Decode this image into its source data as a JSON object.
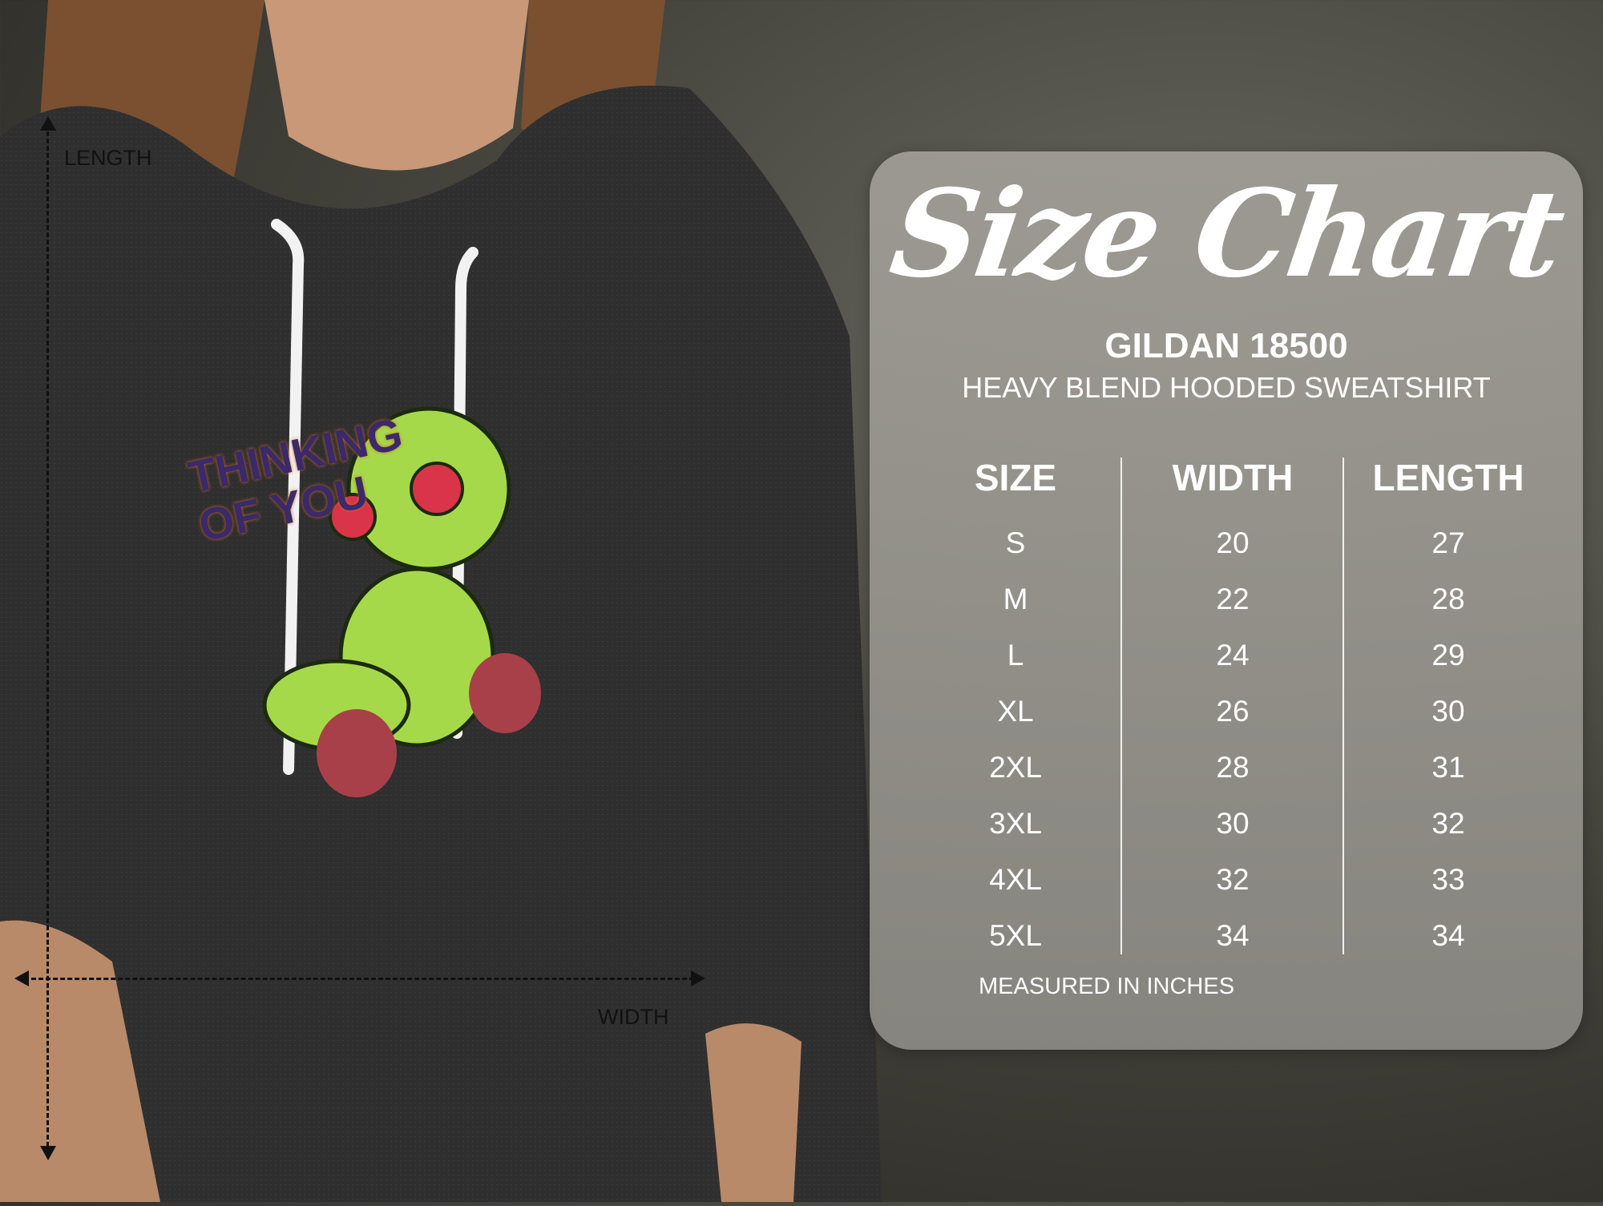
{
  "size_chart": {
    "title": "Size Chart",
    "brand": "GILDAN 18500",
    "product": "HEAVY BLEND HOODED SWEATSHIRT",
    "columns": [
      "SIZE",
      "WIDTH",
      "LENGTH"
    ],
    "rows": [
      {
        "size": "S",
        "width": "20",
        "length": "27"
      },
      {
        "size": "M",
        "width": "22",
        "length": "28"
      },
      {
        "size": "L",
        "width": "24",
        "length": "29"
      },
      {
        "size": "XL",
        "width": "26",
        "length": "30"
      },
      {
        "size": "2XL",
        "width": "28",
        "length": "31"
      },
      {
        "size": "3XL",
        "width": "30",
        "length": "32"
      },
      {
        "size": "4XL",
        "width": "32",
        "length": "33"
      },
      {
        "size": "5XL",
        "width": "34",
        "length": "34"
      }
    ],
    "footnote": "MEASURED IN INCHES"
  },
  "measurements": {
    "length_label": "LENGTH",
    "width_label": "WIDTH"
  },
  "graphic": {
    "print_text": "THINKING OF YOU"
  },
  "colors": {
    "panel": "#9c9a94",
    "hoodie": "#2e2e2e",
    "doll": "#a6d94a",
    "button_eye": "#d9344a"
  }
}
